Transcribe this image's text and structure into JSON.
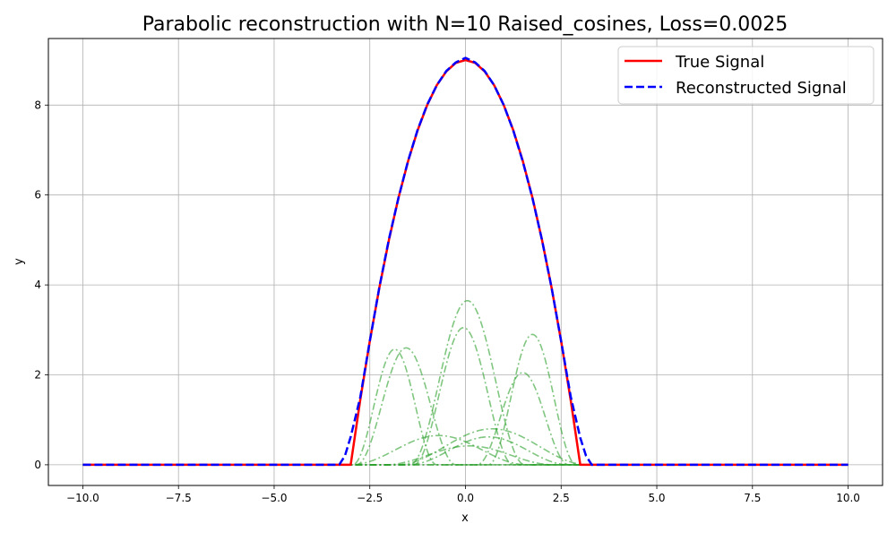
{
  "chart_data": {
    "type": "line",
    "title": "Parabolic reconstruction with N=10 Raised_cosines, Loss=0.0025",
    "xlabel": "x",
    "ylabel": "y",
    "xlim": [
      -10.9,
      10.9
    ],
    "ylim": [
      -0.46,
      9.48
    ],
    "x_ticks": [
      -10.0,
      -7.5,
      -5.0,
      -2.5,
      0.0,
      2.5,
      5.0,
      7.5,
      10.0
    ],
    "x_tick_labels": [
      "−10.0",
      "−7.5",
      "−5.0",
      "−2.5",
      "0.0",
      "2.5",
      "5.0",
      "7.5",
      "10.0"
    ],
    "y_ticks": [
      0,
      2,
      4,
      6,
      8
    ],
    "y_tick_labels": [
      "0",
      "2",
      "4",
      "6",
      "8"
    ],
    "grid": true,
    "legend_position": "top-right",
    "series": [
      {
        "name": "True Signal",
        "color": "#ff0000",
        "style": "solid",
        "x": [
          -10,
          -3,
          -2.75,
          -2.5,
          -2.25,
          -2,
          -1.75,
          -1.5,
          -1.25,
          -1,
          -0.75,
          -0.5,
          -0.25,
          0,
          0.25,
          0.5,
          0.75,
          1,
          1.25,
          1.5,
          1.75,
          2,
          2.25,
          2.5,
          2.75,
          3,
          10
        ],
        "y": [
          0,
          0,
          1.44,
          2.75,
          3.94,
          5.0,
          5.94,
          6.75,
          7.44,
          8.0,
          8.44,
          8.75,
          8.94,
          9.0,
          8.94,
          8.75,
          8.44,
          8.0,
          7.44,
          6.75,
          5.94,
          5.0,
          3.94,
          2.75,
          1.44,
          0,
          0
        ]
      },
      {
        "name": "Reconstructed Signal",
        "color": "#0000ff",
        "style": "dashed",
        "x": [
          -10,
          -3.3,
          -3.15,
          -3.0,
          -2.75,
          -2.5,
          -2.25,
          -2,
          -1.75,
          -1.5,
          -1.25,
          -1,
          -0.75,
          -0.5,
          -0.25,
          0,
          0.25,
          0.5,
          0.75,
          1,
          1.25,
          1.5,
          1.75,
          2,
          2.25,
          2.5,
          2.75,
          3.0,
          3.15,
          3.3,
          10
        ],
        "y": [
          0,
          0,
          0.2,
          0.62,
          1.5,
          2.75,
          3.95,
          5.02,
          5.94,
          6.76,
          7.45,
          8.01,
          8.44,
          8.76,
          8.95,
          9.05,
          8.95,
          8.76,
          8.44,
          8.0,
          7.43,
          6.74,
          5.93,
          5.0,
          3.94,
          2.75,
          1.52,
          0.6,
          0.2,
          0,
          0
        ]
      }
    ],
    "components": {
      "color": "#2ca02c",
      "style": "dashdot",
      "count": 10,
      "centers": [
        -1.85,
        -1.55,
        -0.7,
        -0.05,
        0.05,
        0.1,
        0.6,
        0.7,
        1.5,
        1.75
      ],
      "amplitudes": [
        2.57,
        2.6,
        0.65,
        3.05,
        3.65,
        0.42,
        0.62,
        0.8,
        2.05,
        2.9
      ],
      "half_widths": [
        1.1,
        1.3,
        2.3,
        1.3,
        1.5,
        2.2,
        2.1,
        2.5,
        1.2,
        1.15
      ]
    }
  }
}
